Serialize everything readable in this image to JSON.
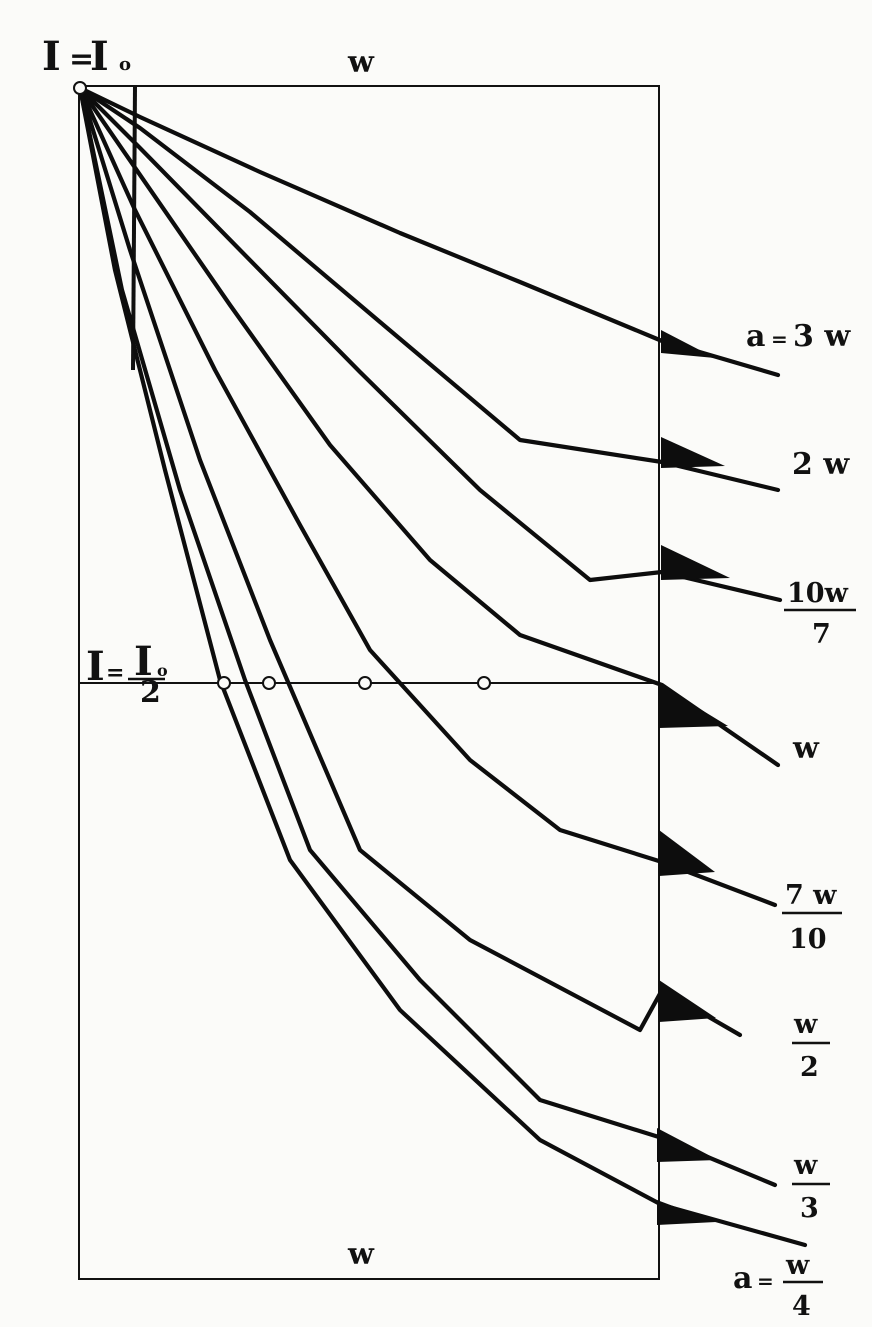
{
  "diagram": {
    "top_label_I": "I",
    "top_label_sub": "I",
    "top_label_sub_mark": "o",
    "top_edge_label": "w",
    "bottom_edge_label": "w",
    "half_label_I": "I",
    "half_label_num": "I",
    "half_label_num_mark": "o",
    "half_label_den": "2",
    "eq": "=",
    "curves": [
      {
        "id": "a-3w",
        "prefix": "a",
        "eq": "=",
        "text": "3 w"
      },
      {
        "id": "2w",
        "text": "2 w"
      },
      {
        "id": "10w-7",
        "num": "10w",
        "den": "7"
      },
      {
        "id": "w",
        "text": "w"
      },
      {
        "id": "7w-10",
        "num": "7 w",
        "den": "10"
      },
      {
        "id": "w-2",
        "num": "w",
        "den": "2"
      },
      {
        "id": "w-3",
        "num": "w",
        "den": "3"
      },
      {
        "id": "w-4",
        "prefix": "a",
        "eq": "=",
        "num": "w",
        "den": "4"
      }
    ]
  }
}
